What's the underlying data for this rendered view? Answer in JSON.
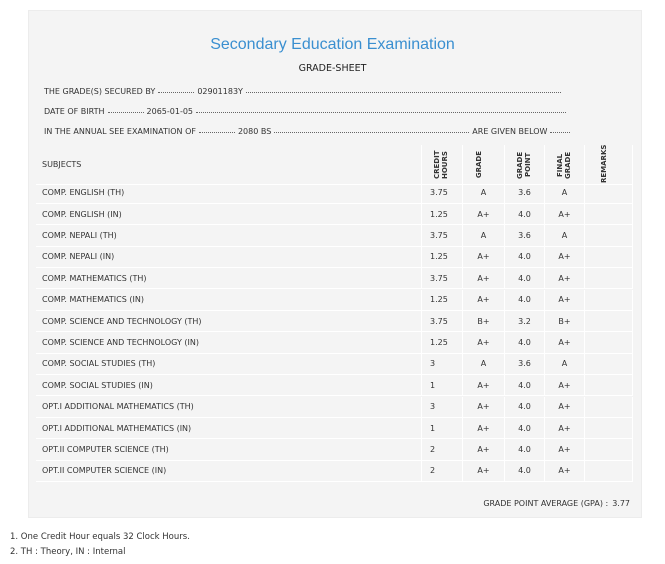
{
  "header": {
    "title": "Secondary Education Examination",
    "subtitle": "GRADE-SHEET"
  },
  "info": [
    {
      "label": "THE GRADE(S) SECURED BY",
      "value": "02901183Y"
    },
    {
      "label": "DATE OF BIRTH",
      "value": "2065-01-05"
    },
    {
      "label": "IN THE ANNUAL SEE EXAMINATION OF",
      "value": "2080 BS",
      "suffix": "ARE GIVEN BELOW"
    }
  ],
  "table": {
    "columns": [
      "SUBJECTS",
      "CREDIT HOURS",
      "GRADE",
      "GRADE POINT",
      "FINAL GRADE",
      "REMARKS"
    ],
    "rows": [
      [
        "COMP. ENGLISH (TH)",
        "3.75",
        "A",
        "3.6",
        "A"
      ],
      [
        "COMP. ENGLISH (IN)",
        "1.25",
        "A+",
        "4.0",
        "A+"
      ],
      [
        "COMP. NEPALI (TH)",
        "3.75",
        "A",
        "3.6",
        "A"
      ],
      [
        "COMP. NEPALI (IN)",
        "1.25",
        "A+",
        "4.0",
        "A+"
      ],
      [
        "COMP. MATHEMATICS (TH)",
        "3.75",
        "A+",
        "4.0",
        "A+"
      ],
      [
        "COMP. MATHEMATICS (IN)",
        "1.25",
        "A+",
        "4.0",
        "A+"
      ],
      [
        "COMP. SCIENCE AND TECHNOLOGY (TH)",
        "3.75",
        "B+",
        "3.2",
        "B+"
      ],
      [
        "COMP. SCIENCE AND TECHNOLOGY (IN)",
        "1.25",
        "A+",
        "4.0",
        "A+"
      ],
      [
        "COMP. SOCIAL STUDIES (TH)",
        "3",
        "A",
        "3.6",
        "A"
      ],
      [
        "COMP. SOCIAL STUDIES (IN)",
        "1",
        "A+",
        "4.0",
        "A+"
      ],
      [
        "OPT.I ADDITIONAL MATHEMATICS (TH)",
        "3",
        "A+",
        "4.0",
        "A+"
      ],
      [
        "OPT.I ADDITIONAL MATHEMATICS (IN)",
        "1",
        "A+",
        "4.0",
        "A+"
      ],
      [
        "OPT.II COMPUTER SCIENCE (TH)",
        "2",
        "A+",
        "4.0",
        "A+"
      ],
      [
        "OPT.II COMPUTER SCIENCE (IN)",
        "2",
        "A+",
        "4.0",
        "A+"
      ]
    ]
  },
  "gpa": {
    "label": "GRADE POINT AVERAGE (GPA) :",
    "value": "3.77"
  },
  "notes": [
    "1. One Credit Hour equals 32 Clock Hours.",
    "2. TH : Theory, IN : Internal"
  ]
}
